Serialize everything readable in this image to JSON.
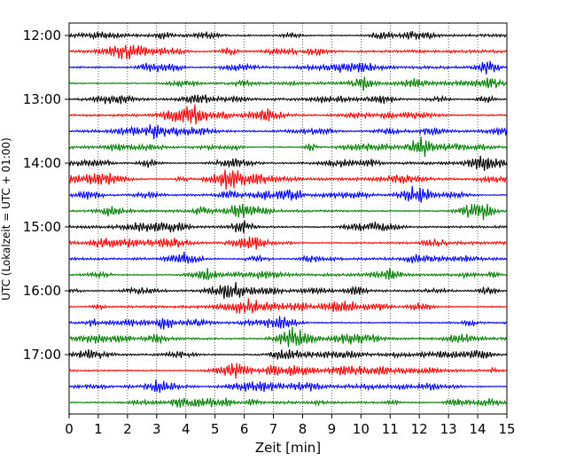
{
  "chart_data": {
    "type": "line",
    "title": "",
    "xlabel": "Zeit  [min]",
    "ylabel": "UTC (Lokalzeit = UTC + 01:00)",
    "xlim": [
      0,
      15
    ],
    "x_ticks": [
      "0",
      "1",
      "2",
      "3",
      "4",
      "5",
      "6",
      "7",
      "8",
      "9",
      "10",
      "11",
      "12",
      "13",
      "14",
      "15"
    ],
    "y_ticks": [
      "12:00",
      "13:00",
      "14:00",
      "15:00",
      "16:00",
      "17:00"
    ],
    "grid": "vertical dotted at each minute",
    "colors": [
      "#000000",
      "#ff0000",
      "#0000ff",
      "#007f00"
    ],
    "traces": [
      {
        "start": "12:00",
        "color": "#000000"
      },
      {
        "start": "12:15",
        "color": "#ff0000"
      },
      {
        "start": "12:30",
        "color": "#0000ff"
      },
      {
        "start": "12:45",
        "color": "#007f00"
      },
      {
        "start": "13:00",
        "color": "#000000"
      },
      {
        "start": "13:15",
        "color": "#ff0000"
      },
      {
        "start": "13:30",
        "color": "#0000ff"
      },
      {
        "start": "13:45",
        "color": "#007f00"
      },
      {
        "start": "14:00",
        "color": "#000000"
      },
      {
        "start": "14:15",
        "color": "#ff0000"
      },
      {
        "start": "14:30",
        "color": "#0000ff"
      },
      {
        "start": "14:45",
        "color": "#007f00"
      },
      {
        "start": "15:00",
        "color": "#000000"
      },
      {
        "start": "15:15",
        "color": "#ff0000"
      },
      {
        "start": "15:30",
        "color": "#0000ff"
      },
      {
        "start": "15:45",
        "color": "#007f00"
      },
      {
        "start": "16:00",
        "color": "#000000"
      },
      {
        "start": "16:15",
        "color": "#ff0000"
      },
      {
        "start": "16:30",
        "color": "#0000ff"
      },
      {
        "start": "16:45",
        "color": "#007f00"
      },
      {
        "start": "17:00",
        "color": "#000000"
      },
      {
        "start": "17:15",
        "color": "#ff0000"
      },
      {
        "start": "17:30",
        "color": "#0000ff"
      },
      {
        "start": "17:45",
        "color": "#007f00"
      }
    ]
  }
}
